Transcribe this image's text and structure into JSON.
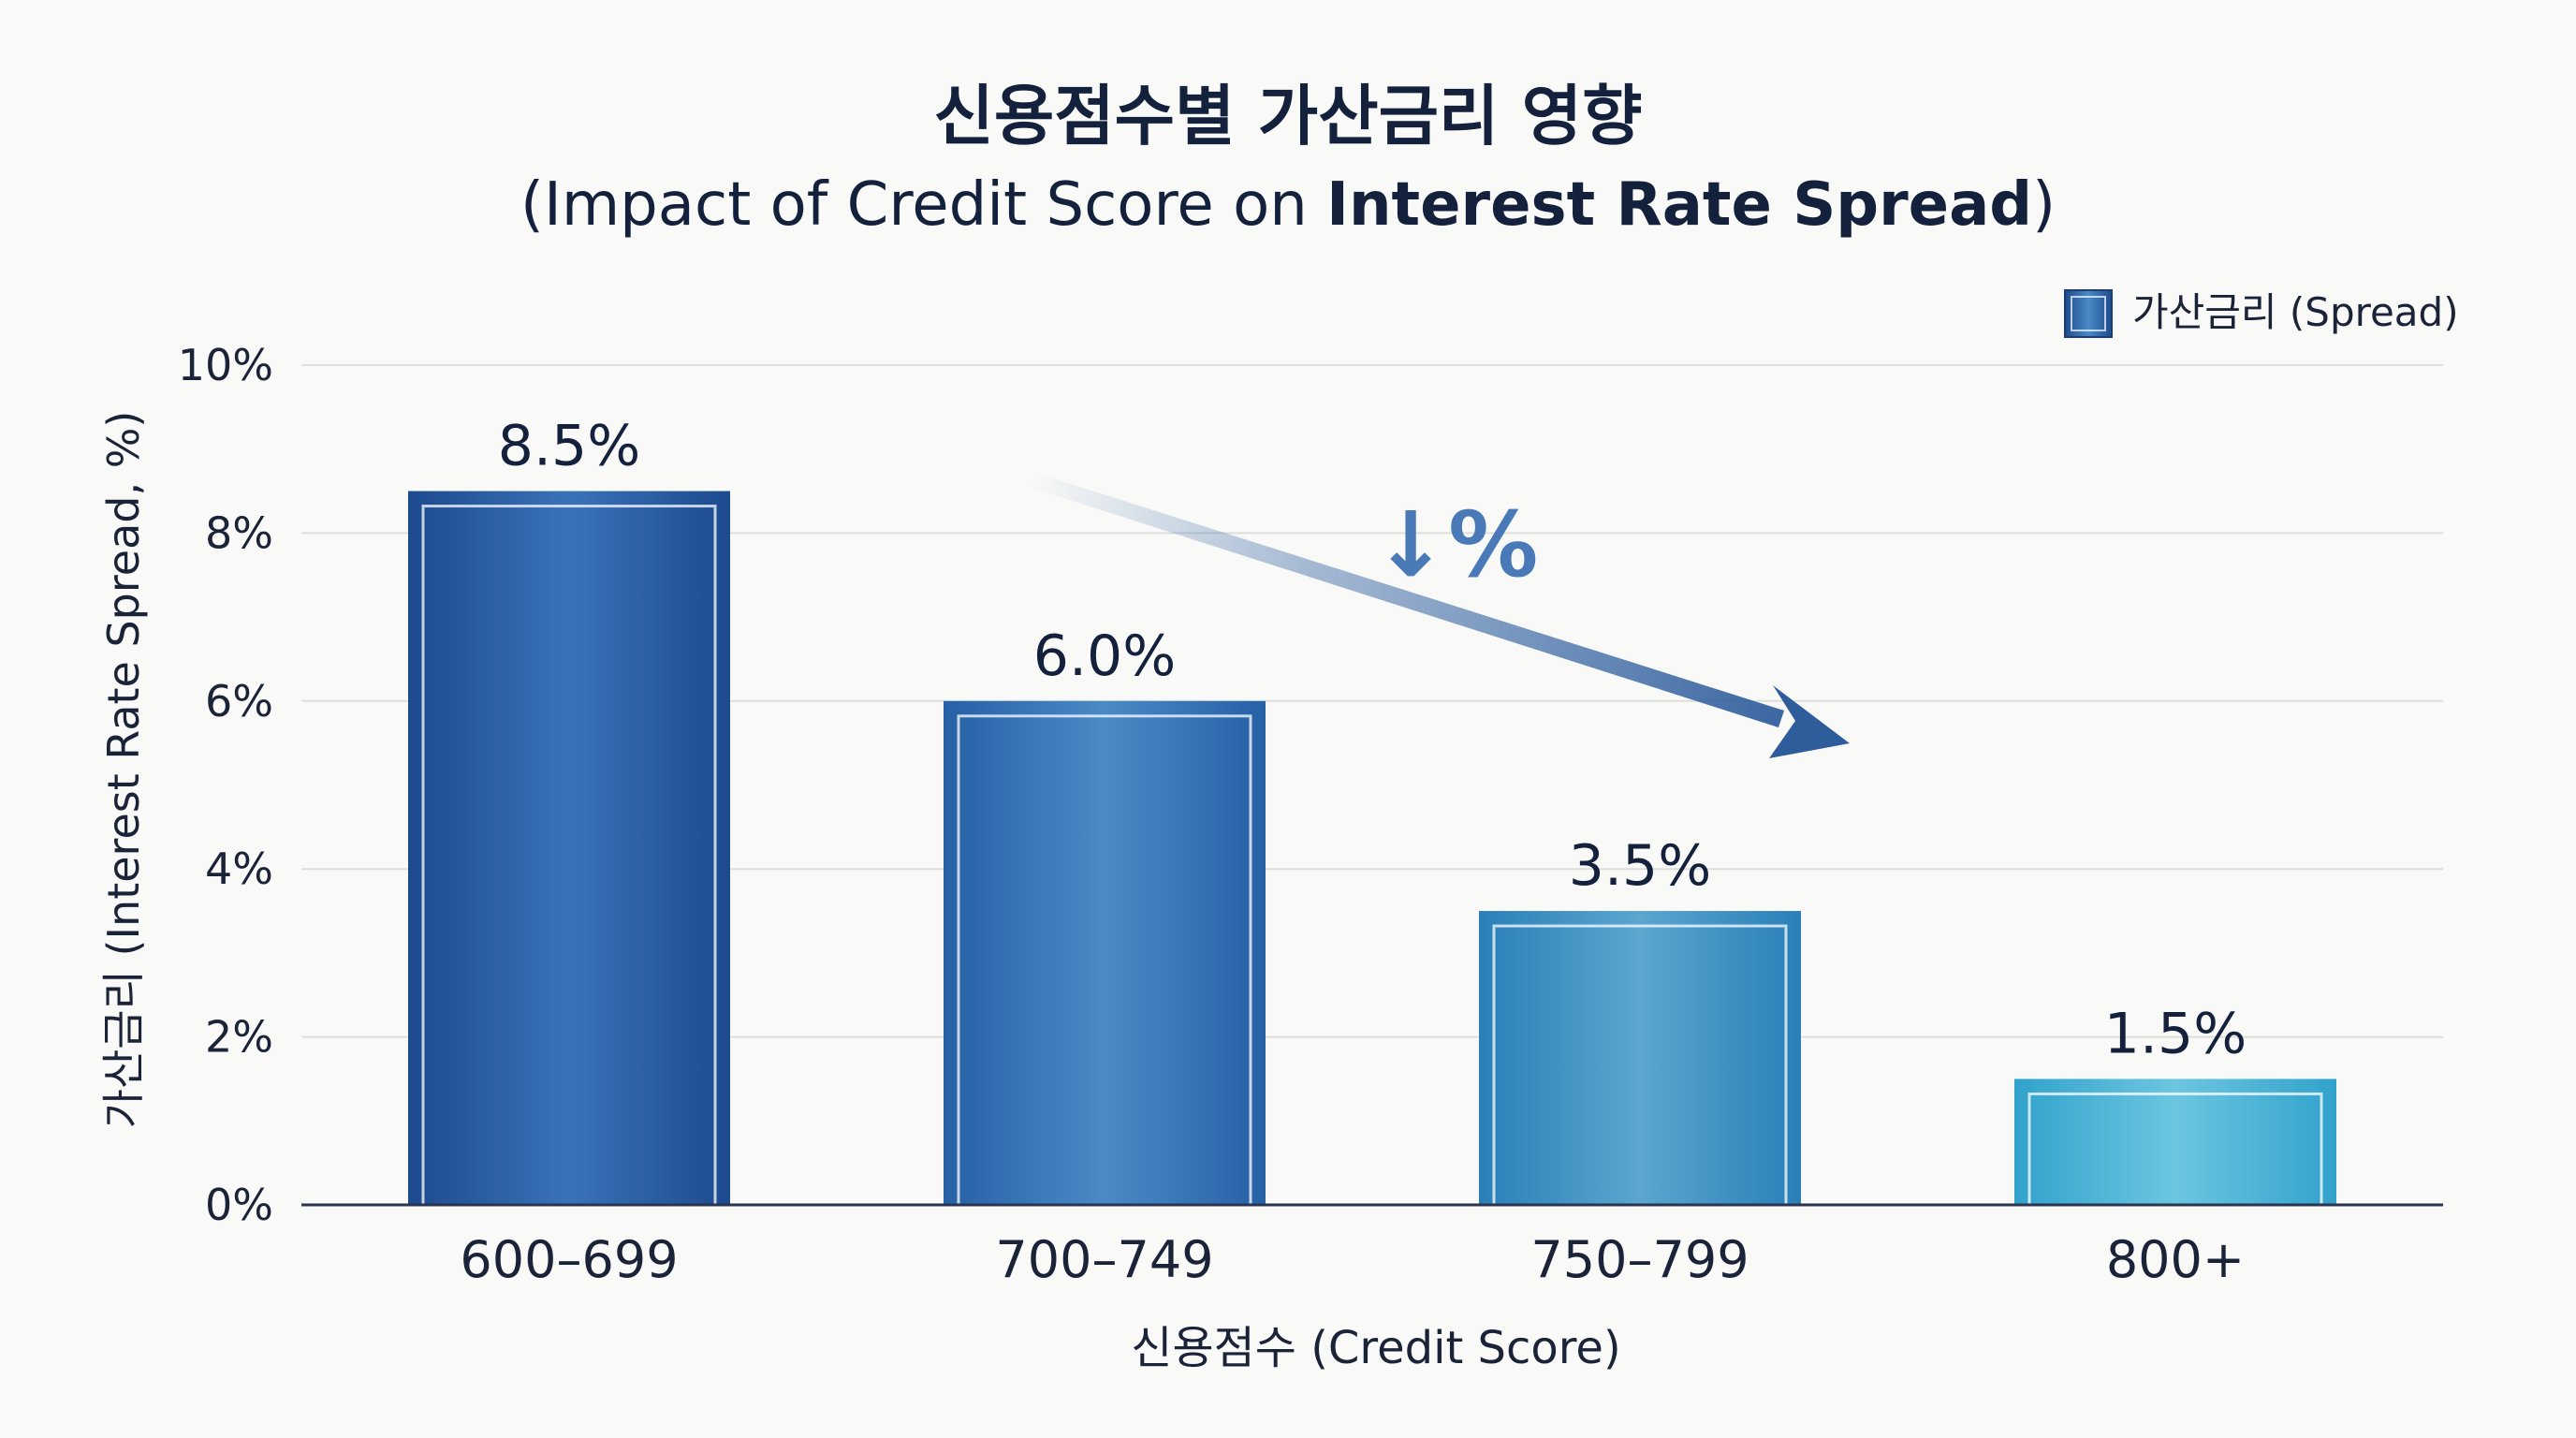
{
  "chart_data": {
    "type": "bar",
    "title": "신용점수별 가산금리 영향",
    "subtitle_prefix": "(Impact of Credit Score on ",
    "subtitle_bold": "Interest Rate Spread",
    "subtitle_suffix": ")",
    "xlabel": "신용점수 (Credit Score)",
    "ylabel": "가산금리 (Interest Rate Spread, %)",
    "categories": [
      "600–699",
      "700–749",
      "750–799",
      "800+"
    ],
    "series": [
      {
        "name": "가산금리 (Spread)",
        "values": [
          8.5,
          6.0,
          3.5,
          1.5
        ],
        "data_labels": [
          "8.5%",
          "6.0%",
          "3.5%",
          "1.5%"
        ]
      }
    ],
    "ylim": [
      0,
      10
    ],
    "yticks": [
      0,
      2,
      4,
      6,
      8,
      10
    ],
    "ytick_labels": [
      "0%",
      "2%",
      "4%",
      "6%",
      "8%",
      "10%"
    ],
    "grid": true,
    "legend_position": "top-right",
    "annotation": "↓%",
    "colors": {
      "bar_dark": "#1f4f94",
      "bar_light": "#2fa7cf",
      "arrow": "#3b68a6",
      "grid": "#dedfdc",
      "text": "#14213d"
    }
  }
}
